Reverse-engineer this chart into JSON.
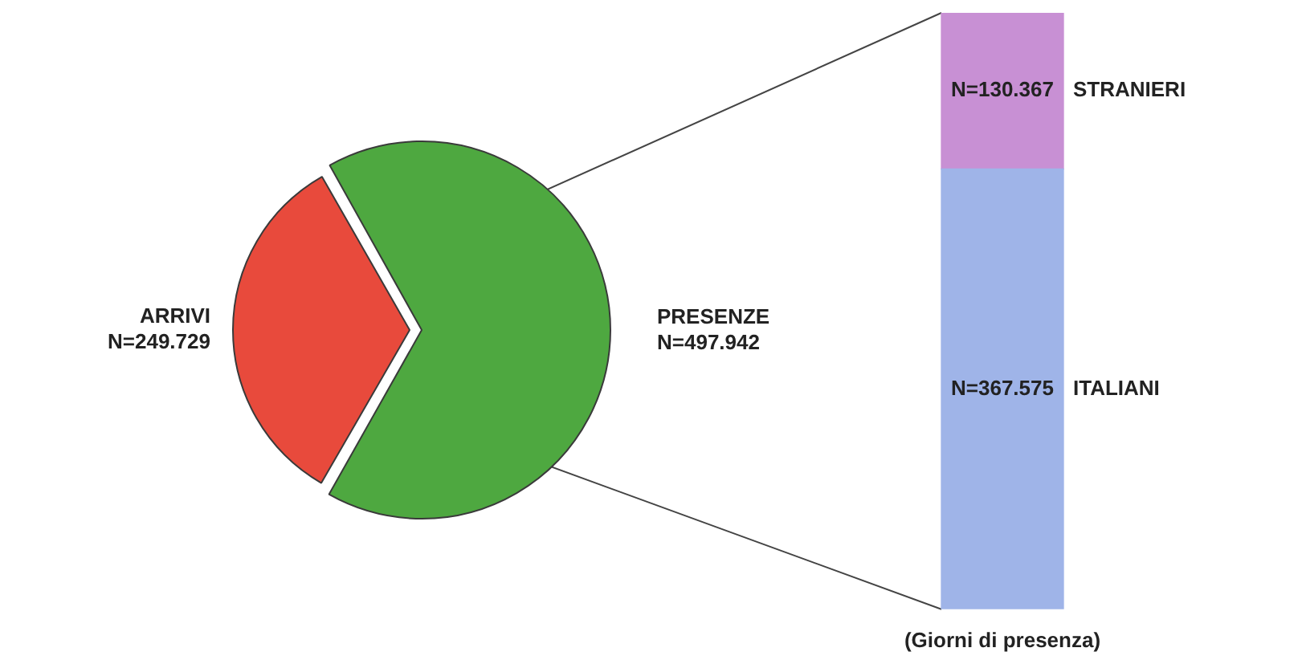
{
  "chart_data": [
    {
      "type": "pie",
      "categories": [
        "ARRIVI",
        "PRESENZE"
      ],
      "values": [
        249729,
        497942
      ],
      "value_labels": [
        "N=249.729",
        "N=497.942"
      ],
      "colors": [
        "#e84a3c",
        "#4ea840"
      ],
      "legend": false
    },
    {
      "type": "bar",
      "stacked": true,
      "categories": [
        null
      ],
      "xlabel": "(Giorni di presenza)",
      "legend": false,
      "series": [
        {
          "name": "ITALIANI",
          "color": "#9fb4e8",
          "values": [
            367575
          ],
          "value_labels": [
            "N=367.575"
          ]
        },
        {
          "name": "STRANIERI",
          "color": "#c890d4",
          "values": [
            130367
          ],
          "value_labels": [
            "N=130.367"
          ]
        }
      ]
    }
  ]
}
